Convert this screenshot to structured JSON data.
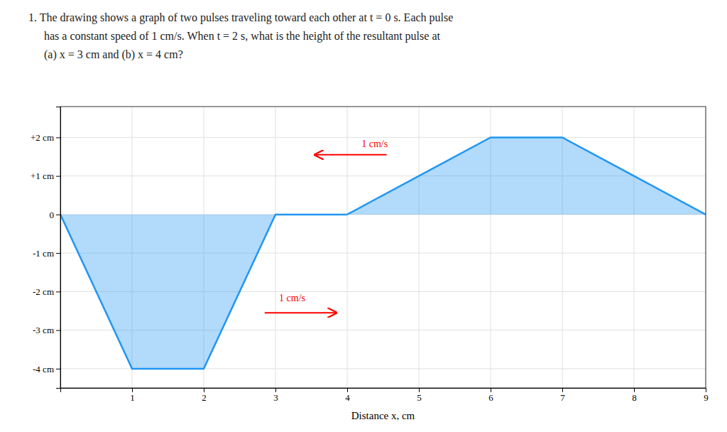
{
  "chart_data": {
    "type": "area",
    "title": [
      "1. The drawing shows a graph of two pulses traveling toward each other at t = 0 s. Each pulse",
      "has a constant speed of 1 cm/s. When t = 2 s, what is the height of the resultant pulse at",
      "(a) x = 3 cm and   (b) x = 4 cm?"
    ],
    "x_label": "Distance x, cm",
    "series": [
      {
        "x": [
          0,
          1,
          2,
          3,
          4
        ],
        "values": [
          0,
          -4,
          -4,
          0,
          0
        ],
        "color": "#2196F3"
      },
      {
        "x": [
          4,
          5,
          6,
          7,
          8,
          9
        ],
        "values": [
          0,
          1,
          2,
          2,
          1,
          0
        ],
        "color": "#2196F3"
      }
    ],
    "xlim": [
      0,
      9
    ],
    "ylim": [
      -4.5,
      2.8
    ],
    "xticks": [
      1,
      2,
      3,
      4,
      5,
      6,
      7,
      8,
      9
    ],
    "yticks": [
      {
        "value": 2,
        "label": "+2 cm"
      },
      {
        "value": 1,
        "label": "+1 cm"
      },
      0,
      {
        "value": -1,
        "label": "-1 cm"
      },
      {
        "value": -2,
        "label": "-2 cm"
      },
      {
        "value": -3,
        "label": "-3 cm"
      },
      {
        "value": -4,
        "label": "-4 cm"
      }
    ],
    "grid": true,
    "annotations": [
      {
        "text": "1 cm/s",
        "x": 3.05,
        "y": -2.25,
        "arrow_from": [
          2.85,
          -2.55
        ],
        "arrow_to": [
          3.85,
          -2.55
        ],
        "color": "red"
      },
      {
        "text": "1 cm/s",
        "x": 4.2,
        "y": 1.75,
        "arrow_from": [
          4.55,
          1.55
        ],
        "arrow_to": [
          3.55,
          1.55
        ],
        "color": "red"
      }
    ]
  }
}
